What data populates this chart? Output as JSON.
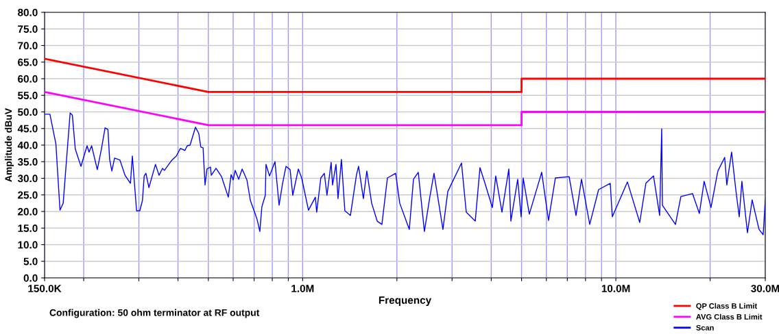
{
  "chart_data": {
    "type": "line",
    "xlabel": "Frequency",
    "ylabel": "Amplitude dBuV",
    "annotations": [
      "Configuration: 50 ohm terminator at RF output"
    ],
    "log": "x",
    "grid": true,
    "legend": "bottom right",
    "marker": "none",
    "line_style": "solid",
    "xlim": [
      150000,
      30000000
    ],
    "ylim": [
      0,
      80
    ],
    "xticks": [
      {
        "value": 150000,
        "label": "150.0K"
      },
      {
        "value": 200000,
        "label": null
      },
      {
        "value": 300000,
        "label": null
      },
      {
        "value": 400000,
        "label": null
      },
      {
        "value": 500000,
        "label": null
      },
      {
        "value": 600000,
        "label": null
      },
      {
        "value": 700000,
        "label": null
      },
      {
        "value": 800000,
        "label": null
      },
      {
        "value": 900000,
        "label": null
      },
      {
        "value": 1000000,
        "label": "1.0M"
      },
      {
        "value": 2000000,
        "label": null
      },
      {
        "value": 3000000,
        "label": null
      },
      {
        "value": 4000000,
        "label": null
      },
      {
        "value": 5000000,
        "label": null
      },
      {
        "value": 6000000,
        "label": null
      },
      {
        "value": 7000000,
        "label": null
      },
      {
        "value": 8000000,
        "label": null
      },
      {
        "value": 9000000,
        "label": null
      },
      {
        "value": 10000000,
        "label": "10.0M"
      },
      {
        "value": 20000000,
        "label": null
      },
      {
        "value": 30000000,
        "label": "30.0M"
      }
    ],
    "yticks": [
      {
        "value": 0,
        "label": "0.0"
      },
      {
        "value": 5,
        "label": "5.0"
      },
      {
        "value": 10,
        "label": "10.0"
      },
      {
        "value": 15,
        "label": "15.0"
      },
      {
        "value": 20,
        "label": "20.0"
      },
      {
        "value": 25,
        "label": "25.0"
      },
      {
        "value": 30,
        "label": "30.0"
      },
      {
        "value": 35,
        "label": "35.0"
      },
      {
        "value": 40,
        "label": "40.0"
      },
      {
        "value": 45,
        "label": "45.0"
      },
      {
        "value": 50,
        "label": "50.0"
      },
      {
        "value": 55,
        "label": "55.0"
      },
      {
        "value": 60,
        "label": "60.0"
      },
      {
        "value": 65,
        "label": "65.0"
      },
      {
        "value": 70,
        "label": "70.0"
      },
      {
        "value": 75,
        "label": "75.0"
      },
      {
        "value": 80,
        "label": "80.0"
      }
    ],
    "series": [
      {
        "name": "QP Class B Limit",
        "color": "#ff0000",
        "x": [
          150000,
          500000,
          5000000,
          5000000,
          30000000
        ],
        "values": [
          66,
          56,
          56,
          60,
          60
        ]
      },
      {
        "name": "AVG Class B Limit",
        "color": "#ff00ff",
        "x": [
          150000,
          500000,
          5000000,
          5000000,
          30000000
        ],
        "values": [
          56,
          46,
          46,
          50,
          50
        ]
      },
      {
        "name": "Scan",
        "color": "#0000ff",
        "x": [
          150000,
          156000,
          163000,
          168000,
          172000,
          181000,
          184000,
          188000,
          196000,
          205000,
          208000,
          212000,
          221000,
          228000,
          234000,
          239000,
          242000,
          246000,
          251000,
          261000,
          271000,
          282000,
          286000,
          295000,
          302000,
          308000,
          312000,
          316000,
          323000,
          339000,
          348000,
          357000,
          362000,
          381000,
          395000,
          407000,
          421000,
          428000,
          437000,
          455000,
          466000,
          473000,
          481000,
          488000,
          495000,
          508000,
          511000,
          529000,
          551000,
          579000,
          591000,
          600000,
          609000,
          625000,
          641000,
          664000,
          681000,
          705000,
          716000,
          730000,
          741000,
          760000,
          764000,
          784000,
          816000,
          841000,
          863000,
          885000,
          912000,
          930000,
          969000,
          993000,
          1044000,
          1098000,
          1109000,
          1143000,
          1173000,
          1196000,
          1233000,
          1246000,
          1278000,
          1297000,
          1330000,
          1364000,
          1421000,
          1486000,
          1509000,
          1563000,
          1603000,
          1661000,
          1730000,
          1791000,
          1865000,
          1981000,
          2042000,
          2191000,
          2259000,
          2340000,
          2448000,
          2549000,
          2627000,
          2805000,
          2907000,
          3215000,
          3330000,
          3557000,
          3683000,
          3815000,
          4034000,
          4136000,
          4329000,
          4553000,
          4622000,
          4860000,
          4985000,
          5060000,
          5294000,
          5798000,
          6096000,
          6411000,
          7094000,
          7461000,
          7769000,
          8253000,
          8810000,
          9596000,
          9743000,
          10890000,
          11920000,
          12470000,
          13190000,
          13800000,
          14010000,
          14080000,
          15500000,
          16130000,
          17570000,
          18480000,
          19140000,
          20130000,
          21170000,
          22260000,
          22610000,
          23420000,
          24150000,
          24770000,
          25260000,
          26310000,
          27240000,
          28650000,
          29540000,
          30000000
        ],
        "values": [
          49.3,
          49.3,
          40.4,
          20.4,
          22.5,
          49.7,
          49,
          38.8,
          33.6,
          39.8,
          37.9,
          39.8,
          32.6,
          39,
          45.2,
          44.7,
          35.7,
          32.2,
          36.1,
          35.5,
          30.9,
          28.5,
          36.7,
          20.2,
          20.2,
          23.3,
          30.7,
          31.5,
          27.2,
          34.2,
          30.9,
          33,
          32.4,
          35.3,
          36.7,
          39,
          38.4,
          39.8,
          40,
          45.4,
          43.5,
          39.4,
          39.2,
          28,
          32.8,
          33.4,
          30.9,
          33,
          30.5,
          24.3,
          31.1,
          29.5,
          32.4,
          29.7,
          32.8,
          29.5,
          23.3,
          19.4,
          17.5,
          14,
          21.4,
          24.9,
          34.2,
          30.7,
          35,
          21.9,
          28.5,
          33.6,
          32.6,
          24.9,
          32.8,
          30.1,
          20.4,
          24.3,
          19.8,
          30.1,
          31.5,
          24.9,
          34.8,
          28,
          34.2,
          23.9,
          35.7,
          20.2,
          18.8,
          31.1,
          33.6,
          23.9,
          32.2,
          22.5,
          17.1,
          16.1,
          30.1,
          31.5,
          22.5,
          14.6,
          29.7,
          31.8,
          14,
          24.5,
          31.5,
          14.6,
          26,
          34.6,
          19.8,
          17.1,
          33.2,
          28.7,
          21.2,
          30.7,
          19.8,
          32.8,
          17.1,
          29.7,
          18.4,
          30.1,
          19.2,
          31.8,
          17.3,
          30.1,
          30.5,
          18.8,
          29.7,
          16.1,
          26.6,
          28.5,
          18.4,
          28.9,
          16.7,
          28.5,
          30.7,
          18.8,
          44.9,
          21.9,
          16.1,
          24.5,
          25.4,
          19.4,
          29.1,
          21.2,
          32.2,
          36.3,
          28,
          37.9,
          26.6,
          18.4,
          29.1,
          13.6,
          23.5,
          14.6,
          13,
          23.5
        ]
      }
    ]
  }
}
